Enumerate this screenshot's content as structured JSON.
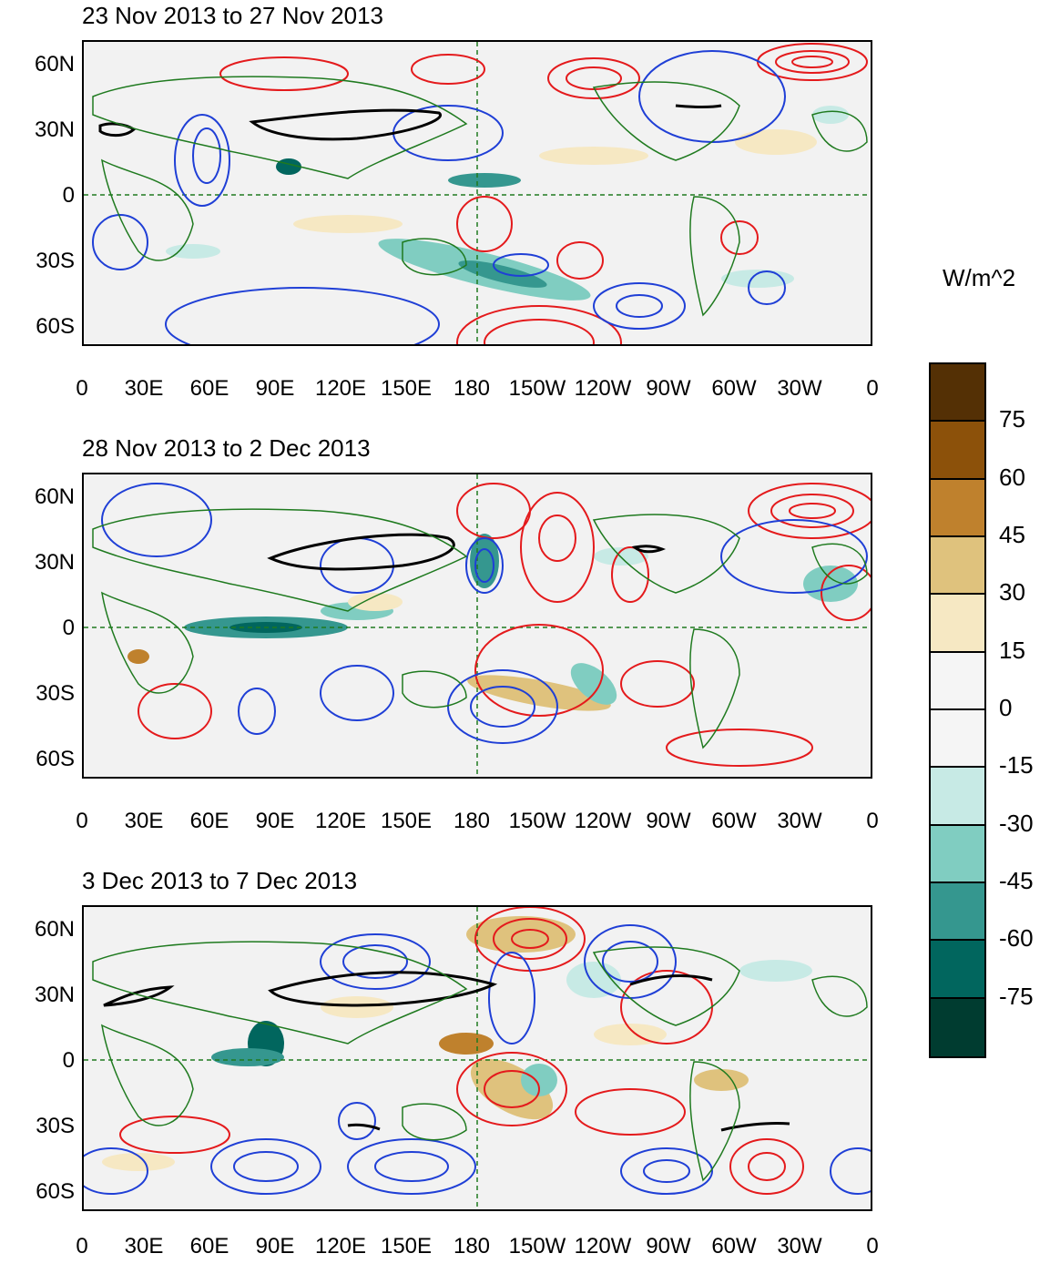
{
  "figure": {
    "units_label": "W/m^2",
    "y_tick_labels": [
      "60N",
      "30N",
      "0",
      "30S",
      "60S"
    ],
    "x_tick_labels": [
      "0",
      "30E",
      "60E",
      "90E",
      "120E",
      "150E",
      "180",
      "150W",
      "120W",
      "90W",
      "60W",
      "30W",
      "0"
    ],
    "panels": [
      {
        "title": "23 Nov 2013 to 27 Nov 2013"
      },
      {
        "title": "28 Nov 2013 to 2 Dec 2013"
      },
      {
        "title": "3 Dec 2013 to 7 Dec 2013"
      }
    ]
  },
  "colorbar": {
    "labels": [
      "75",
      "60",
      "45",
      "30",
      "15",
      "0",
      "-15",
      "-30",
      "-45",
      "-60",
      "-75"
    ],
    "colors": [
      "#543005",
      "#8c510a",
      "#bf812d",
      "#dfc27d",
      "#f6e8c3",
      "#f5f5f5",
      "#f5f5f5",
      "#c7eae5",
      "#80cdc1",
      "#35978f",
      "#01665e",
      "#003c30"
    ]
  },
  "style": {
    "land_outline": "#1f7a1f",
    "positive_contour": "#e41a1c",
    "negative_contour": "#1f3fd6",
    "zero_line": "#000000"
  }
}
